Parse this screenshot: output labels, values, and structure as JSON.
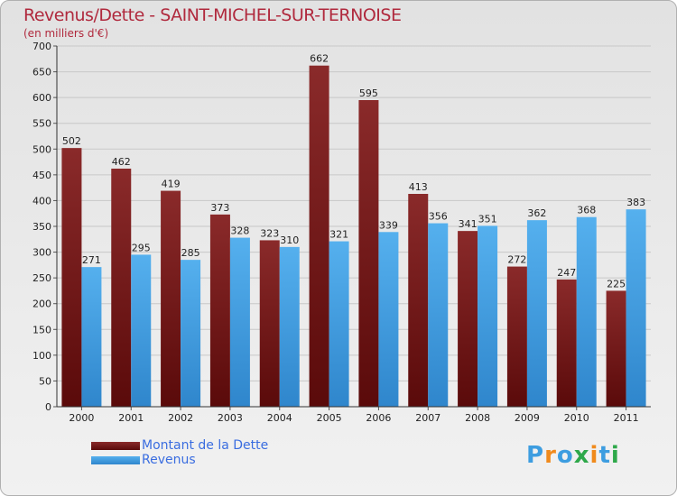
{
  "title": "Revenus/Dette - SAINT-MICHEL-SUR-TERNOISE",
  "subtitle": "(en milliers d'€)",
  "logo": {
    "letters": [
      "P",
      "r",
      "o",
      "x",
      "i",
      "t",
      "i"
    ],
    "colors": [
      "#3d9de0",
      "#f08a1c",
      "#3d9de0",
      "#2ea84a",
      "#f08a1c",
      "#3d9de0",
      "#2ea84a"
    ]
  },
  "chart_data": {
    "type": "bar",
    "categories": [
      "2000",
      "2001",
      "2002",
      "2003",
      "2004",
      "2005",
      "2006",
      "2007",
      "2008",
      "2009",
      "2010",
      "2011"
    ],
    "series": [
      {
        "name": "Montant de la Dette",
        "color": "#7a1a1a",
        "values": [
          502,
          462,
          419,
          373,
          323,
          662,
          595,
          413,
          341,
          272,
          247,
          225
        ]
      },
      {
        "name": "Revenus",
        "color": "#3d9de0",
        "values": [
          271,
          295,
          285,
          328,
          310,
          321,
          339,
          356,
          351,
          362,
          368,
          383
        ]
      }
    ],
    "ylim": [
      0,
      700
    ],
    "yticks": [
      0,
      50,
      100,
      150,
      200,
      250,
      300,
      350,
      400,
      450,
      500,
      550,
      600,
      650,
      700
    ],
    "grid": true,
    "legend_position": "bottom-left"
  }
}
